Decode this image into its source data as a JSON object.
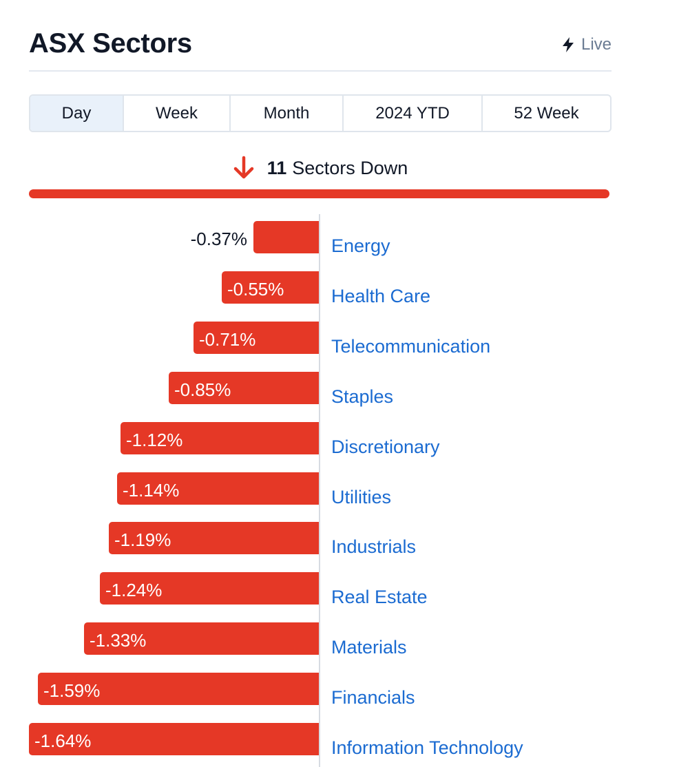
{
  "header": {
    "title": "ASX Sectors",
    "live_label": "Live"
  },
  "tabs": [
    {
      "label": "Day",
      "active": true
    },
    {
      "label": "Week",
      "active": false
    },
    {
      "label": "Month",
      "active": false
    },
    {
      "label": "2024 YTD",
      "active": false
    },
    {
      "label": "52 Week",
      "active": false
    }
  ],
  "summary": {
    "count": "11",
    "text": "Sectors Down",
    "icon": "arrow-down-icon"
  },
  "colors": {
    "down": "#e53826",
    "link": "#1b6bd1",
    "tab_active": "#e9f1fa"
  },
  "chart_data": {
    "type": "bar",
    "orientation": "horizontal",
    "categories": [
      "Energy",
      "Health Care",
      "Telecommunication",
      "Staples",
      "Discretionary",
      "Utilities",
      "Industrials",
      "Real Estate",
      "Materials",
      "Financials",
      "Information Technology"
    ],
    "values": [
      -0.37,
      -0.55,
      -0.71,
      -0.85,
      -1.12,
      -1.14,
      -1.19,
      -1.24,
      -1.33,
      -1.59,
      -1.64
    ],
    "labels": [
      "-0.37%",
      "-0.55%",
      "-0.71%",
      "-0.85%",
      "-1.12%",
      "-1.14%",
      "-1.19%",
      "-1.24%",
      "-1.33%",
      "-1.59%",
      "-1.64%"
    ]
  }
}
